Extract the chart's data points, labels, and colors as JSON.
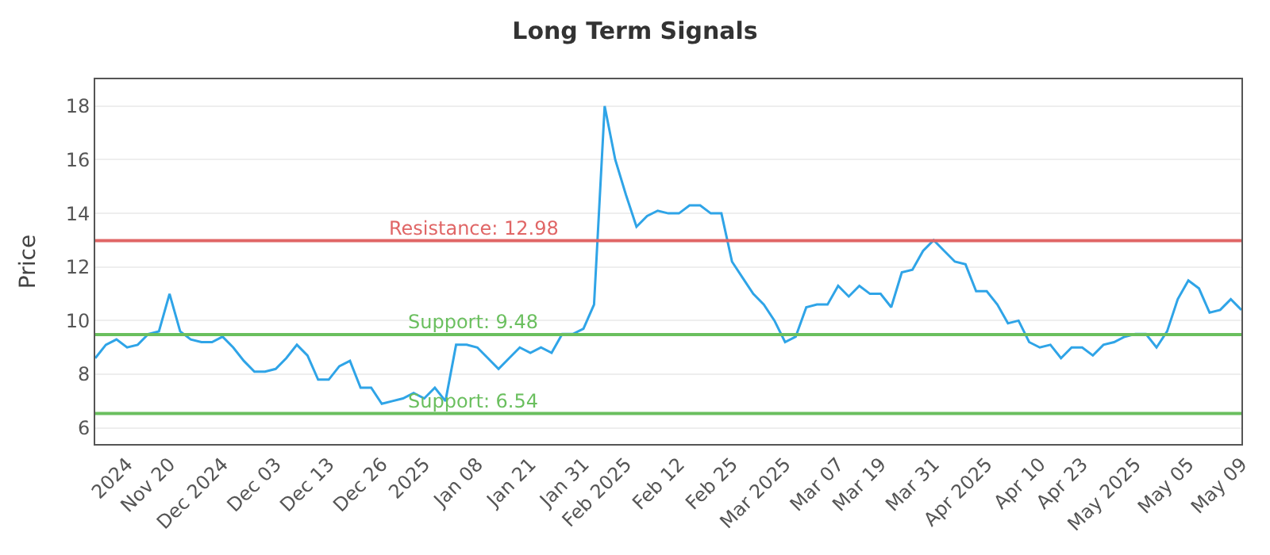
{
  "chart_data": {
    "type": "line",
    "title": "Long Term Signals",
    "ylabel": "Price",
    "categories": [
      null,
      null,
      null,
      "2024",
      null,
      null,
      null,
      "Nov 20",
      null,
      null,
      null,
      null,
      "Dec 2024",
      null,
      null,
      null,
      null,
      "Dec 03",
      null,
      null,
      null,
      null,
      "Dec 13",
      null,
      null,
      null,
      null,
      "Dec 26",
      null,
      null,
      null,
      "2025",
      null,
      null,
      null,
      null,
      "Jan 08",
      null,
      null,
      null,
      null,
      "Jan 21",
      null,
      null,
      null,
      null,
      "Jan 31",
      null,
      null,
      null,
      "Feb 2025",
      null,
      null,
      null,
      null,
      "Feb 12",
      null,
      null,
      null,
      null,
      "Feb 25",
      null,
      null,
      null,
      null,
      "Mar 2025",
      null,
      null,
      null,
      null,
      "Mar 07",
      null,
      null,
      null,
      "Mar 19",
      null,
      null,
      null,
      null,
      "Mar 31",
      null,
      null,
      null,
      null,
      "Apr 2025",
      null,
      null,
      null,
      null,
      "Apr 10",
      null,
      null,
      null,
      "Apr 23",
      null,
      null,
      null,
      null,
      "May 2025",
      null,
      null,
      null,
      null,
      "May 05",
      null,
      null,
      null,
      null,
      "May 09"
    ],
    "series": [
      {
        "color": "#2fa4e7",
        "values": [
          8.6,
          9.1,
          9.3,
          9.0,
          9.1,
          9.5,
          9.6,
          11.0,
          9.6,
          9.3,
          9.2,
          9.2,
          9.4,
          9.0,
          8.5,
          8.1,
          8.1,
          8.2,
          8.6,
          9.1,
          8.7,
          7.8,
          7.8,
          8.3,
          8.5,
          7.5,
          7.5,
          6.9,
          7.0,
          7.1,
          7.3,
          7.1,
          7.5,
          7.0,
          9.1,
          9.1,
          9.0,
          8.6,
          8.2,
          8.6,
          9.0,
          8.8,
          9.0,
          8.8,
          9.5,
          9.5,
          9.7,
          10.6,
          18.0,
          16.0,
          14.7,
          13.5,
          13.9,
          14.1,
          14.0,
          14.0,
          14.3,
          14.3,
          14.0,
          14.0,
          12.2,
          11.6,
          11.0,
          10.6,
          10.0,
          9.2,
          9.4,
          10.5,
          10.6,
          10.6,
          11.3,
          10.9,
          11.3,
          11.0,
          11.0,
          10.5,
          11.8,
          11.9,
          12.6,
          13.0,
          12.6,
          12.2,
          12.1,
          11.1,
          11.1,
          10.6,
          9.9,
          10.0,
          9.2,
          9.0,
          9.1,
          8.6,
          9.0,
          9.0,
          8.7,
          9.1,
          9.2,
          9.4,
          9.5,
          9.5,
          9.0,
          9.6,
          10.8,
          11.5,
          11.2,
          10.3,
          10.4,
          10.8,
          10.4
        ]
      }
    ],
    "ylim": [
      5.4,
      19
    ],
    "yticks": [
      6,
      8,
      10,
      12,
      14,
      16,
      18
    ],
    "grid": "y",
    "marker": "none",
    "line_style": "solid",
    "ref_lines": [
      {
        "axis": "y",
        "value": 12.98,
        "label": "Resistance: 12.98",
        "color": "#e06666"
      },
      {
        "axis": "y",
        "value": 9.48,
        "label": "Support: 9.48",
        "color": "#6abf5e"
      },
      {
        "axis": "y",
        "value": 6.54,
        "label": "Support: 6.54",
        "color": "#6abf5e"
      }
    ]
  }
}
